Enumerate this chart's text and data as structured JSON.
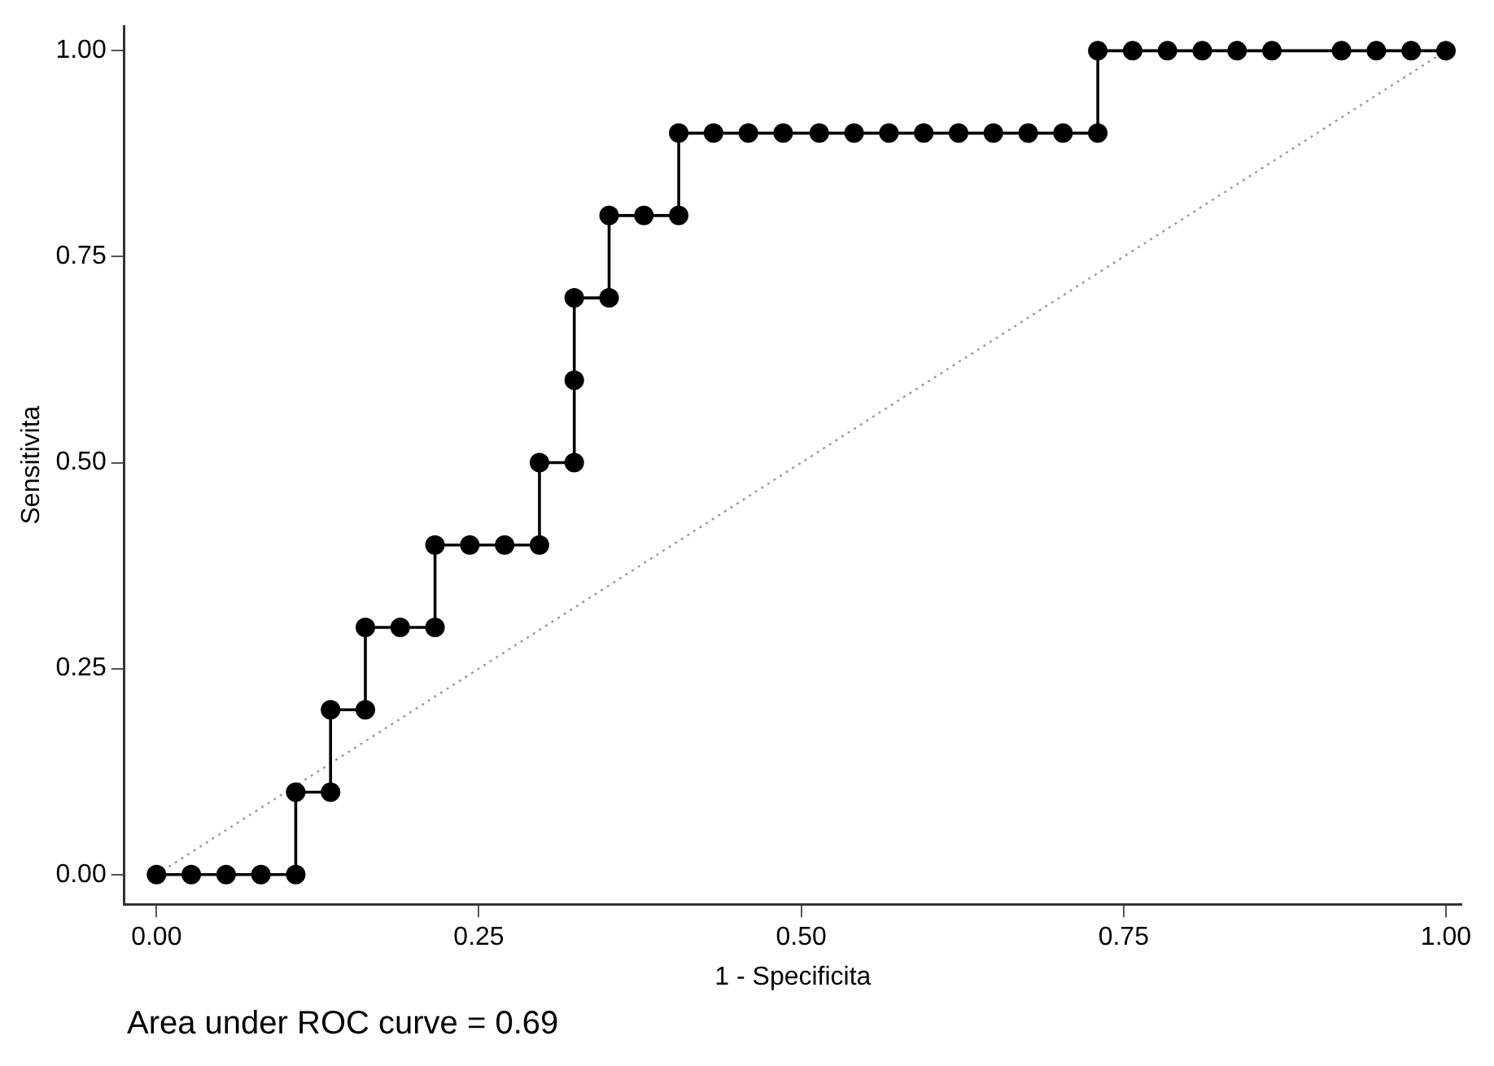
{
  "chart_data": {
    "type": "line",
    "xlabel": "1 - Specificita",
    "ylabel": "Sensitivita",
    "xlim": [
      -0.025,
      1.012
    ],
    "ylim": [
      -0.036,
      1.03
    ],
    "xticks": [
      {
        "value": 0,
        "label": "0.00"
      },
      {
        "value": 0.25,
        "label": "0.25"
      },
      {
        "value": 0.5,
        "label": "0.50"
      },
      {
        "value": 0.75,
        "label": "0.75"
      },
      {
        "value": 1,
        "label": "1.00"
      }
    ],
    "yticks": [
      {
        "value": 0,
        "label": "0.00"
      },
      {
        "value": 0.25,
        "label": "0.25"
      },
      {
        "value": 0.5,
        "label": "0.50"
      },
      {
        "value": 0.75,
        "label": "0.75"
      },
      {
        "value": 1,
        "label": "1.00"
      }
    ],
    "grid": false,
    "legend": false,
    "series": [
      {
        "type": "line",
        "color": "#000000",
        "marker": "circle",
        "line_style": "solid",
        "x": [
          0,
          0.027,
          0.054,
          0.081,
          0.108,
          0.108,
          0.135,
          0.135,
          0.162,
          0.162,
          0.189,
          0.216,
          0.216,
          0.243,
          0.27,
          0.297,
          0.297,
          0.324,
          0.324,
          0.351,
          0.351,
          0.378,
          0.405,
          0.405,
          0.432,
          0.459,
          0.486,
          0.514,
          0.541,
          0.568,
          0.595,
          0.622,
          0.649,
          0.676,
          0.703,
          0.73,
          0.73,
          0.757,
          0.784,
          0.811,
          0.838,
          0.865,
          0.919,
          0.946,
          0.973,
          1
        ],
        "values": [
          0,
          0,
          0,
          0,
          0,
          0.1,
          0.1,
          0.2,
          0.2,
          0.3,
          0.3,
          0.3,
          0.4,
          0.4,
          0.4,
          0.4,
          0.5,
          0.5,
          0.7,
          0.7,
          0.8,
          0.8,
          0.8,
          0.9,
          0.9,
          0.9,
          0.9,
          0.9,
          0.9,
          0.9,
          0.9,
          0.9,
          0.9,
          0.9,
          0.9,
          0.9,
          1,
          1,
          1,
          1,
          1,
          1,
          1,
          1,
          1,
          1
        ]
      },
      {
        "type": "scatter",
        "color": "#000000",
        "marker": "circle",
        "x": [
          0.324
        ],
        "values": [
          0.6
        ]
      },
      {
        "type": "line",
        "color": "#999999",
        "marker": "none",
        "line_style": "dotted",
        "x": [
          0,
          1
        ],
        "values": [
          0,
          1
        ]
      }
    ],
    "annotations": [
      "Area under ROC curve = 0.69"
    ]
  }
}
